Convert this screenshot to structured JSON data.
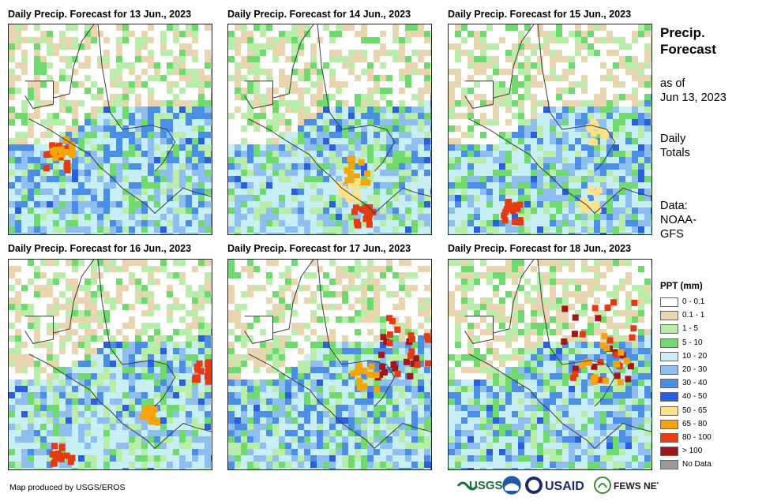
{
  "panels": [
    {
      "title": "Daily Precip. Forecast for 13 Jun., 2023",
      "seed": 13,
      "blobs": [
        [
          0.22,
          0.62,
          0.06,
          "#e63a12"
        ],
        [
          0.25,
          0.58,
          0.05,
          "#f7a30a"
        ]
      ],
      "wet": 0.55
    },
    {
      "title": "Daily Precip. Forecast for 14 Jun., 2023",
      "seed": 14,
      "blobs": [
        [
          0.62,
          0.68,
          0.06,
          "#f7a30a"
        ],
        [
          0.65,
          0.9,
          0.05,
          "#e63a12"
        ],
        [
          0.58,
          0.78,
          0.05,
          "#ffe18a"
        ]
      ],
      "wet": 0.68
    },
    {
      "title": "Daily Precip. Forecast for 15 Jun., 2023",
      "seed": 15,
      "blobs": [
        [
          0.3,
          0.88,
          0.05,
          "#e63a12"
        ],
        [
          0.68,
          0.82,
          0.05,
          "#ffe18a"
        ],
        [
          0.72,
          0.5,
          0.05,
          "#ffe18a"
        ]
      ],
      "wet": 0.62
    },
    {
      "title": "Daily Precip. Forecast for 16 Jun., 2023",
      "seed": 16,
      "blobs": [
        [
          0.95,
          0.52,
          0.05,
          "#e63a12"
        ],
        [
          0.25,
          0.92,
          0.05,
          "#e63a12"
        ],
        [
          0.68,
          0.72,
          0.04,
          "#f7a30a"
        ]
      ],
      "wet": 0.66
    },
    {
      "title": "Daily Precip. Forecast for 17 Jun., 2023",
      "seed": 17,
      "blobs": [
        [
          0.82,
          0.45,
          0.1,
          "#a11616"
        ],
        [
          0.85,
          0.4,
          0.14,
          "#e63a12"
        ],
        [
          0.66,
          0.55,
          0.06,
          "#f7a30a"
        ]
      ],
      "wet": 0.58
    },
    {
      "title": "Daily Precip. Forecast for 18 Jun., 2023",
      "seed": 18,
      "blobs": [
        [
          0.72,
          0.38,
          0.18,
          "#a11616"
        ],
        [
          0.78,
          0.36,
          0.2,
          "#e63a12"
        ],
        [
          0.75,
          0.45,
          0.12,
          "#f7a30a"
        ]
      ],
      "wet": 0.6
    }
  ],
  "side": {
    "title_line1": "Precip.",
    "title_line2": "Forecast",
    "as_of_line1": "as of",
    "as_of_line2": "Jun 13, 2023",
    "totals_line1": "Daily",
    "totals_line2": "Totals",
    "data_line1": "Data:",
    "data_line2": "NOAA-",
    "data_line3": "GFS"
  },
  "legend": {
    "title": "PPT (mm)",
    "items": [
      {
        "label": "0 - 0.1",
        "color": "#ffffff"
      },
      {
        "label": "0.1 - 1",
        "color": "#e9d5b0"
      },
      {
        "label": "1 - 5",
        "color": "#b8eeaa"
      },
      {
        "label": "5 - 10",
        "color": "#6fdb6f"
      },
      {
        "label": "10 - 20",
        "color": "#c8eef6"
      },
      {
        "label": "20 - 30",
        "color": "#8fbff0"
      },
      {
        "label": "30 - 40",
        "color": "#4a8ee6"
      },
      {
        "label": "40 - 50",
        "color": "#2a5fe0"
      },
      {
        "label": "50 - 65",
        "color": "#ffe18a"
      },
      {
        "label": "65 - 80",
        "color": "#f7a30a"
      },
      {
        "label": "80 - 100",
        "color": "#f03c0c"
      },
      {
        "label": "> 100",
        "color": "#a11616"
      },
      {
        "label": "No Data",
        "color": "#9a9a9a"
      }
    ]
  },
  "footer": {
    "credit": "Map produced by USGS/EROS",
    "logos": [
      "USGS",
      "NOAA",
      "USAID",
      "FEWS NET"
    ]
  }
}
